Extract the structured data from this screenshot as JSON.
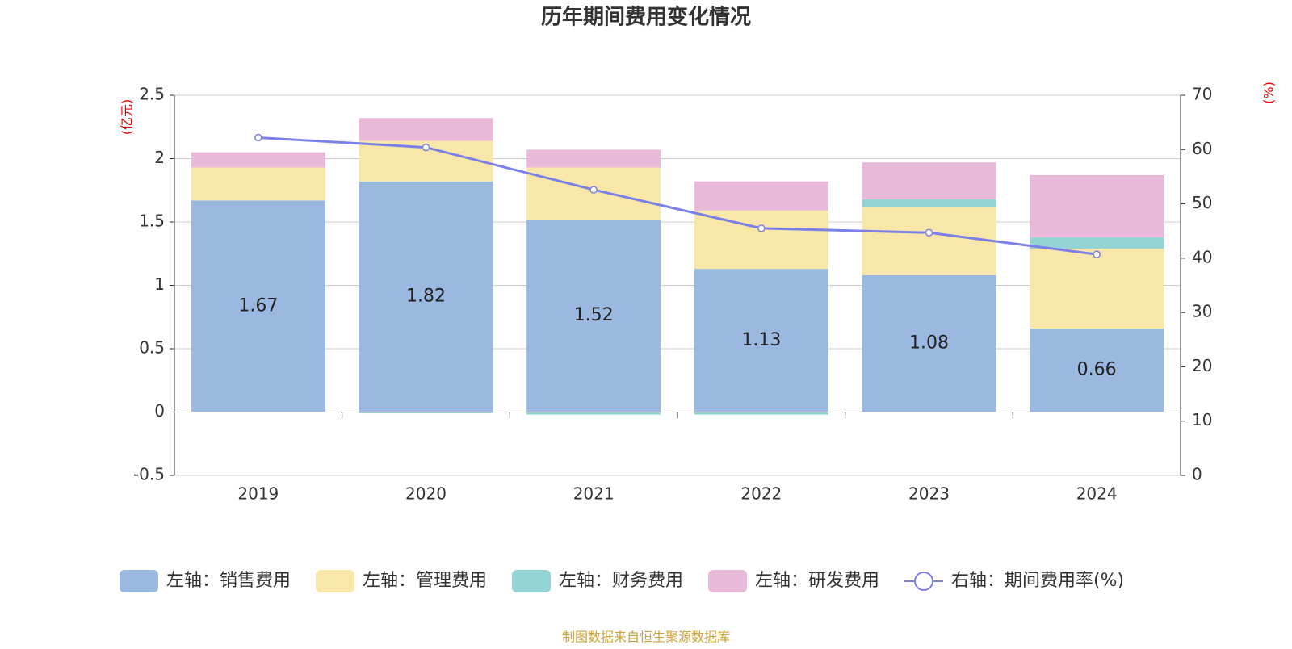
{
  "chart_data": {
    "type": "bar",
    "title": "历年期间费用变化情况",
    "y_label": "(亿元)",
    "y2_label": "(%)",
    "source": "制图数据来自恒生聚源数据库",
    "categories": [
      "2019",
      "2020",
      "2021",
      "2022",
      "2023",
      "2024"
    ],
    "series": [
      {
        "name": "左轴：销售费用",
        "color": "#9bb8e0",
        "values": [
          1.67,
          1.82,
          1.52,
          1.13,
          1.08,
          0.66
        ]
      },
      {
        "name": "左轴：管理费用",
        "color": "#f8e7a8",
        "values": [
          0.26,
          0.32,
          0.41,
          0.46,
          0.54,
          0.63
        ]
      },
      {
        "name": "左轴：财务费用",
        "color": "#94d3d3",
        "values": [
          0,
          -0.01,
          -0.02,
          -0.02,
          0.06,
          0.09
        ]
      },
      {
        "name": "左轴：研发费用",
        "color": "#e8b9d9",
        "values": [
          0.12,
          0.18,
          0.14,
          0.23,
          0.29,
          0.49
        ]
      },
      {
        "name": "右轴：期间费用率(%)",
        "color": "#7b7fe8",
        "type": "line",
        "axis": "y2",
        "values": [
          62.2,
          60.4,
          52.6,
          45.5,
          44.7,
          40.7
        ]
      }
    ],
    "ylim": [
      -0.5,
      2.5
    ],
    "yticks": [
      2.5,
      2,
      1.5,
      1,
      0.5,
      0,
      -0.5
    ],
    "y2lim": [
      0,
      70
    ],
    "y2ticks": [
      70,
      60,
      50,
      40,
      30,
      20,
      10,
      0
    ],
    "grid": true,
    "legend": "bottom"
  }
}
